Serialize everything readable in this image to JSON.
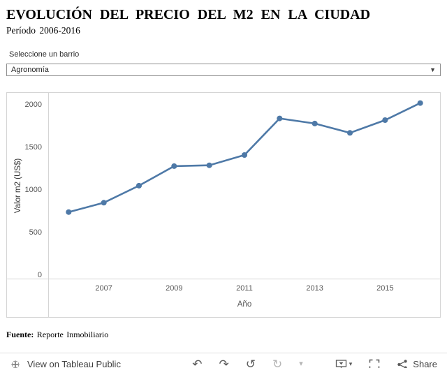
{
  "header": {
    "title": "EVOLUCIÓN DEL PRECIO DEL M2 EN LA CIUDAD",
    "subtitle": "Período 2006-2016"
  },
  "filter": {
    "label": "Seleccione un barrio",
    "selected": "Agronomía"
  },
  "chart_data": {
    "type": "line",
    "x": [
      2006,
      2007,
      2008,
      2009,
      2010,
      2011,
      2012,
      2013,
      2014,
      2015,
      2016
    ],
    "values": [
      740,
      850,
      1050,
      1280,
      1290,
      1410,
      1840,
      1780,
      1670,
      1820,
      2020
    ],
    "x_ticks": [
      2007,
      2009,
      2011,
      2013,
      2015
    ],
    "y_ticks": [
      0,
      500,
      1000,
      1500,
      2000
    ],
    "xlabel": "Año",
    "ylabel": "Valor m2 (US$)",
    "ylim": [
      0,
      2140
    ],
    "line_color": "#4e79a7",
    "marker": "circle",
    "grid": false,
    "legend": "none"
  },
  "footer": {
    "source_label": "Fuente:",
    "source_text": "Reporte Inmobiliario"
  },
  "toolbar": {
    "view_on_tableau": "View on Tableau Public",
    "undo_glyph": "↶",
    "redo_glyph": "↷",
    "revert_glyph": "↺",
    "refresh_glyph": "↻",
    "caret_glyph": "▾",
    "share_label": "Share",
    "icon_names": [
      "tableau-logo",
      "undo",
      "redo",
      "revert",
      "refresh",
      "more-caret",
      "download",
      "fullscreen",
      "share"
    ]
  }
}
